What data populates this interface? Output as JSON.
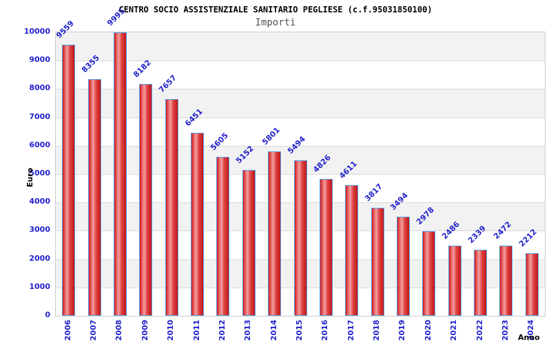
{
  "chart_data": {
    "type": "bar",
    "title": "CENTRO SOCIO ASSISTENZIALE SANITARIO PEGLIESE (c.f.95031850100)",
    "subtitle": "Importi",
    "xlabel": "Anno",
    "ylabel": "Euro",
    "categories": [
      "2006",
      "2007",
      "2008",
      "2009",
      "2010",
      "2011",
      "2012",
      "2013",
      "2014",
      "2015",
      "2016",
      "2017",
      "2018",
      "2019",
      "2020",
      "2021",
      "2022",
      "2023",
      "2024"
    ],
    "values": [
      9559,
      8355,
      9995,
      8182,
      7657,
      6451,
      5605,
      5152,
      5801,
      5494,
      4826,
      4611,
      3817,
      3494,
      2978,
      2486,
      2339,
      2472,
      2212
    ],
    "ylim": [
      0,
      10000
    ],
    "ytick_step": 1000,
    "grid": true,
    "legend_position": "none",
    "value_label_rotation_deg": -45,
    "x_tick_rotation_deg": -90,
    "colors": {
      "tick_text": "#2222cc",
      "bar_border": "#55a0e8",
      "bar_gradient": [
        "#cc1c1c",
        "#e85a5a",
        "#f2a0a0",
        "#e04444",
        "#c01616"
      ],
      "band_gray": "#f2f2f2",
      "band_white": "#ffffff",
      "gridline": "#d9d9d9",
      "plot_border": "#c9c9c9",
      "title_color": "#000000",
      "subtitle_color": "#555555",
      "axis_title_color": "#000000"
    }
  }
}
